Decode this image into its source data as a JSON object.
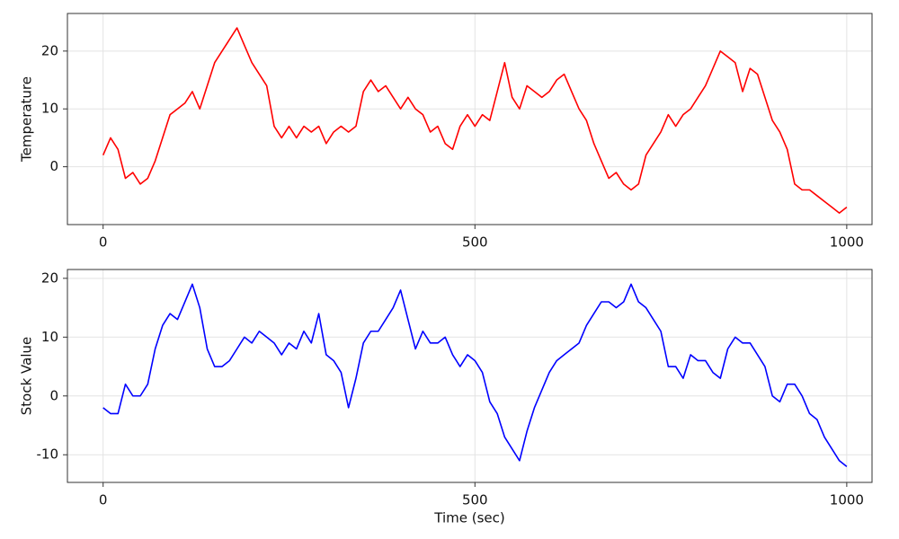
{
  "chart_data": [
    {
      "type": "line",
      "y_label": "Temperature",
      "x": [
        0,
        10,
        20,
        30,
        40,
        50,
        60,
        70,
        80,
        90,
        100,
        110,
        120,
        130,
        140,
        150,
        160,
        170,
        180,
        190,
        200,
        210,
        220,
        230,
        240,
        250,
        260,
        270,
        280,
        290,
        300,
        310,
        320,
        330,
        340,
        350,
        360,
        370,
        380,
        390,
        400,
        410,
        420,
        430,
        440,
        450,
        460,
        470,
        480,
        490,
        500,
        510,
        520,
        530,
        540,
        550,
        560,
        570,
        580,
        590,
        600,
        610,
        620,
        630,
        640,
        650,
        660,
        670,
        680,
        690,
        700,
        710,
        720,
        730,
        740,
        750,
        760,
        770,
        780,
        790,
        800,
        810,
        820,
        830,
        840,
        850,
        860,
        870,
        880,
        890,
        900,
        910,
        920,
        930,
        940,
        950,
        960,
        970,
        980,
        990,
        1000
      ],
      "series": [
        {
          "name": "Temperature",
          "color": "#ff0000",
          "values": [
            2,
            5,
            3,
            -2,
            -1,
            -3,
            -2,
            1,
            5,
            9,
            10,
            11,
            13,
            10,
            14,
            18,
            20,
            22,
            24,
            21,
            18,
            16,
            14,
            7,
            5,
            7,
            5,
            7,
            6,
            7,
            4,
            6,
            7,
            6,
            7,
            13,
            15,
            13,
            14,
            12,
            10,
            12,
            10,
            9,
            6,
            7,
            4,
            3,
            7,
            9,
            7,
            9,
            8,
            13,
            18,
            12,
            10,
            14,
            13,
            12,
            13,
            15,
            16,
            13,
            10,
            8,
            4,
            1,
            -2,
            -1,
            -3,
            -4,
            -3,
            2,
            4,
            6,
            9,
            7,
            9,
            10,
            12,
            14,
            17,
            20,
            19,
            18,
            13,
            17,
            16,
            12,
            8,
            6,
            3,
            -3,
            -4,
            -4,
            -5,
            -6,
            -7,
            -8,
            -7
          ]
        }
      ],
      "xlim": [
        -48,
        1034
      ],
      "xticks": [
        0,
        500,
        1000
      ],
      "ylim": [
        -10,
        26.5
      ],
      "yticks": [
        0,
        10,
        20
      ],
      "grid": true
    },
    {
      "type": "line",
      "x_label": "Time (sec)",
      "y_label": "Stock Value",
      "x": [
        0,
        10,
        20,
        30,
        40,
        50,
        60,
        70,
        80,
        90,
        100,
        110,
        120,
        130,
        140,
        150,
        160,
        170,
        180,
        190,
        200,
        210,
        220,
        230,
        240,
        250,
        260,
        270,
        280,
        290,
        300,
        310,
        320,
        330,
        340,
        350,
        360,
        370,
        380,
        390,
        400,
        410,
        420,
        430,
        440,
        450,
        460,
        470,
        480,
        490,
        500,
        510,
        520,
        530,
        540,
        550,
        560,
        570,
        580,
        590,
        600,
        610,
        620,
        630,
        640,
        650,
        660,
        670,
        680,
        690,
        700,
        710,
        720,
        730,
        740,
        750,
        760,
        770,
        780,
        790,
        800,
        810,
        820,
        830,
        840,
        850,
        860,
        870,
        880,
        890,
        900,
        910,
        920,
        930,
        940,
        950,
        960,
        970,
        980,
        990,
        1000
      ],
      "series": [
        {
          "name": "Stock Value",
          "color": "#0000ff",
          "values": [
            -2,
            -3,
            -3,
            2,
            0,
            0,
            2,
            8,
            12,
            14,
            13,
            16,
            19,
            15,
            8,
            5,
            5,
            6,
            8,
            10,
            9,
            11,
            10,
            9,
            7,
            9,
            8,
            11,
            9,
            14,
            7,
            6,
            4,
            -2,
            3,
            9,
            11,
            11,
            13,
            15,
            18,
            13,
            8,
            11,
            9,
            9,
            10,
            7,
            5,
            7,
            6,
            4,
            -1,
            -3,
            -7,
            -9,
            -11,
            -6,
            -2,
            1,
            4,
            6,
            7,
            8,
            9,
            12,
            14,
            16,
            16,
            15,
            16,
            19,
            16,
            15,
            13,
            11,
            5,
            5,
            3,
            7,
            6,
            6,
            4,
            3,
            8,
            10,
            9,
            9,
            7,
            5,
            0,
            -1,
            2,
            2,
            0,
            -3,
            -4,
            -7,
            -9,
            -11,
            -12
          ]
        }
      ],
      "xlim": [
        -48,
        1034
      ],
      "xticks": [
        0,
        500,
        1000
      ],
      "ylim": [
        -14.7,
        21.5
      ],
      "yticks": [
        -10,
        0,
        10,
        20
      ],
      "grid": true
    }
  ]
}
